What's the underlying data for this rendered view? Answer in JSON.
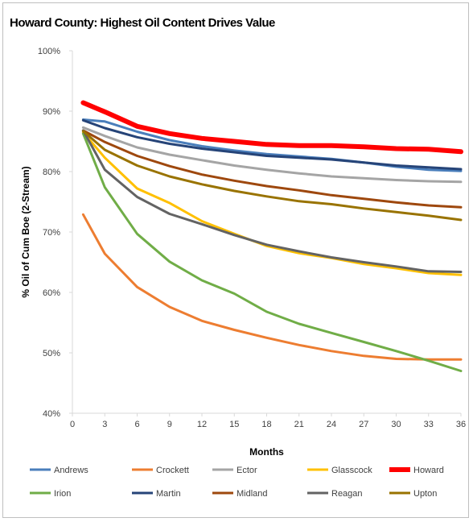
{
  "chart_data": {
    "type": "line",
    "title": "Howard County: Highest Oil Content Drives Value",
    "xlabel": "Months",
    "ylabel": "% Oil of Cum Boe (2-Stream)",
    "xlim": [
      0,
      36
    ],
    "ylim": [
      0.4,
      1.0
    ],
    "x_ticks": [
      0,
      3,
      6,
      9,
      12,
      15,
      18,
      21,
      24,
      27,
      30,
      33,
      36
    ],
    "y_ticks": [
      {
        "value": 0.4,
        "label": "40%"
      },
      {
        "value": 0.5,
        "label": "50%"
      },
      {
        "value": 0.6,
        "label": "60%"
      },
      {
        "value": 0.7,
        "label": "70%"
      },
      {
        "value": 0.8,
        "label": "80%"
      },
      {
        "value": 0.9,
        "label": "90%"
      },
      {
        "value": 1.0,
        "label": "100%"
      }
    ],
    "grid": false,
    "legend_position": "bottom",
    "x": [
      1,
      3,
      6,
      9,
      12,
      15,
      18,
      21,
      24,
      27,
      30,
      33,
      36
    ],
    "series": [
      {
        "name": "Andrews",
        "color": "#4a7ebb",
        "width": 3,
        "values": [
          0.886,
          0.883,
          0.866,
          0.852,
          0.842,
          0.835,
          0.829,
          0.825,
          0.821,
          0.815,
          0.808,
          0.803,
          0.801
        ]
      },
      {
        "name": "Crockett",
        "color": "#ed7d31",
        "width": 3,
        "values": [
          0.729,
          0.664,
          0.609,
          0.576,
          0.553,
          0.538,
          0.525,
          0.513,
          0.503,
          0.495,
          0.49,
          0.489,
          0.489
        ]
      },
      {
        "name": "Ector",
        "color": "#a5a5a5",
        "width": 3,
        "values": [
          0.873,
          0.859,
          0.84,
          0.828,
          0.819,
          0.81,
          0.803,
          0.797,
          0.792,
          0.789,
          0.786,
          0.784,
          0.783
        ]
      },
      {
        "name": "Glasscock",
        "color": "#ffc000",
        "width": 3,
        "values": [
          0.865,
          0.823,
          0.772,
          0.748,
          0.718,
          0.697,
          0.677,
          0.665,
          0.657,
          0.647,
          0.64,
          0.632,
          0.629
        ]
      },
      {
        "name": "Howard",
        "color": "#ff0000",
        "width": 6,
        "values": [
          0.914,
          0.899,
          0.875,
          0.863,
          0.855,
          0.85,
          0.845,
          0.843,
          0.843,
          0.841,
          0.838,
          0.837,
          0.833
        ]
      },
      {
        "name": "Irion",
        "color": "#70ad47",
        "width": 3,
        "values": [
          0.863,
          0.774,
          0.697,
          0.651,
          0.62,
          0.598,
          0.568,
          0.548,
          0.533,
          0.518,
          0.503,
          0.487,
          0.47
        ]
      },
      {
        "name": "Martin",
        "color": "#264478",
        "width": 3,
        "values": [
          0.885,
          0.872,
          0.857,
          0.846,
          0.838,
          0.832,
          0.826,
          0.823,
          0.82,
          0.815,
          0.81,
          0.807,
          0.804
        ]
      },
      {
        "name": "Midland",
        "color": "#9e480e",
        "width": 3,
        "values": [
          0.868,
          0.849,
          0.826,
          0.809,
          0.795,
          0.785,
          0.776,
          0.769,
          0.761,
          0.755,
          0.749,
          0.744,
          0.741
        ]
      },
      {
        "name": "Reagan",
        "color": "#636363",
        "width": 3,
        "values": [
          0.868,
          0.803,
          0.758,
          0.73,
          0.713,
          0.695,
          0.679,
          0.668,
          0.658,
          0.65,
          0.643,
          0.635,
          0.634
        ]
      },
      {
        "name": "Upton",
        "color": "#997300",
        "width": 3,
        "values": [
          0.867,
          0.836,
          0.81,
          0.792,
          0.779,
          0.768,
          0.759,
          0.751,
          0.746,
          0.739,
          0.733,
          0.727,
          0.72
        ]
      }
    ]
  }
}
